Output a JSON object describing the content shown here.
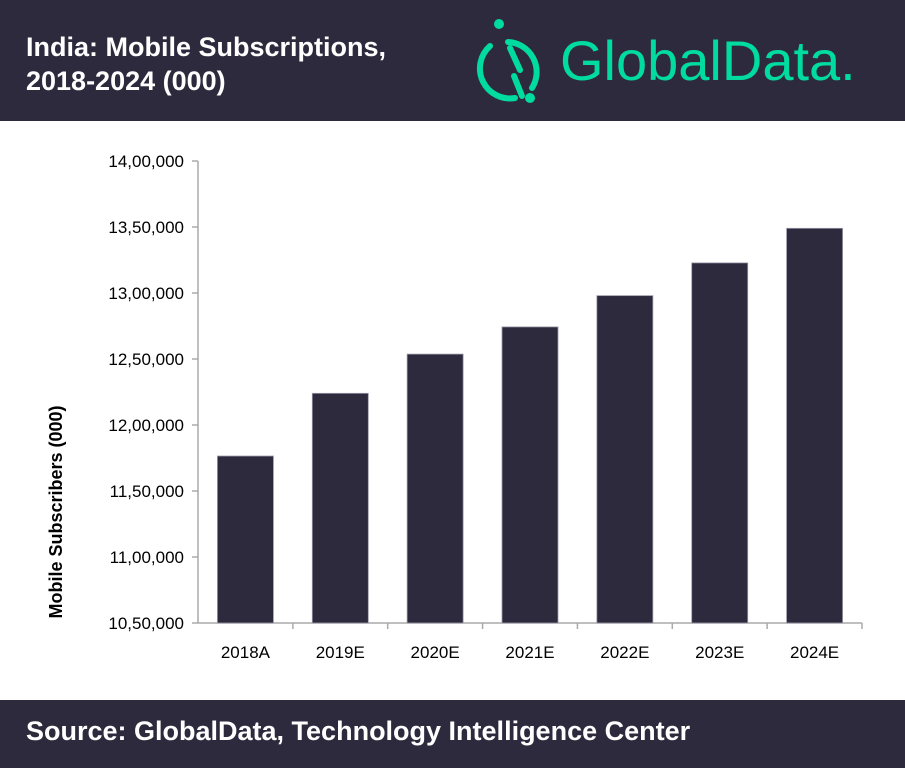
{
  "header": {
    "title": "India: Mobile Subscriptions,\n2018-2024 (000)",
    "logo_text": "GlobalData."
  },
  "footer": {
    "source": "Source: GlobalData, Technology Intelligence Center"
  },
  "colors": {
    "background_band": "#2e2a3d",
    "bar": "#2e2a3d",
    "brand": "#00dba0"
  },
  "chart_data": {
    "type": "bar",
    "categories": [
      "2018A",
      "2019E",
      "2020E",
      "2021E",
      "2022E",
      "2023E",
      "2024E"
    ],
    "values": [
      1176500,
      1224000,
      1253700,
      1274300,
      1298000,
      1322800,
      1349000
    ],
    "ylabel": "Mobile Subscribers (000)",
    "ylim": [
      1050000,
      1400000
    ],
    "yticks": [
      "10,50,000",
      "11,00,000",
      "11,50,000",
      "12,00,000",
      "12,50,000",
      "13,00,000",
      "13,50,000",
      "14,00,000"
    ],
    "grid": false,
    "legend": "none"
  }
}
